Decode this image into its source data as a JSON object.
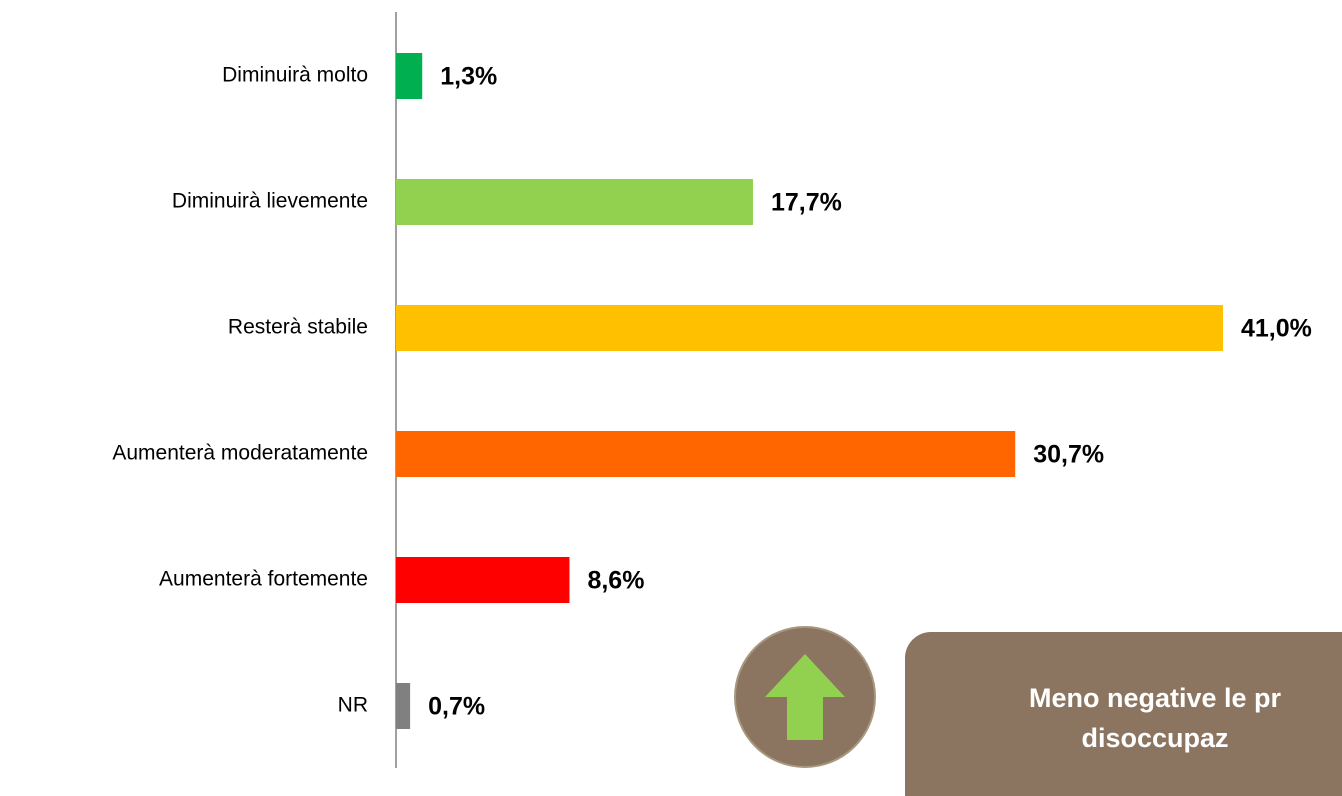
{
  "chart_data": {
    "type": "hbar",
    "categories": [
      "Diminuirà molto",
      "Diminuirà lievemente",
      "Resterà stabile",
      "Aumenterà moderatamente",
      "Aumenterà fortemente",
      "NR"
    ],
    "values": [
      1.3,
      17.7,
      41.0,
      30.7,
      8.6,
      0.7
    ],
    "value_labels": [
      "1,3%",
      "17,7%",
      "41,0%",
      "30,7%",
      "8,6%",
      "0,7%"
    ],
    "colors": [
      "#00b050",
      "#92d050",
      "#ffc000",
      "#ff6600",
      "#ff0000",
      "#808080"
    ],
    "xlim": [
      0,
      47
    ],
    "annotation": [
      "Meno negative le pr",
      "disoccupaz"
    ]
  }
}
